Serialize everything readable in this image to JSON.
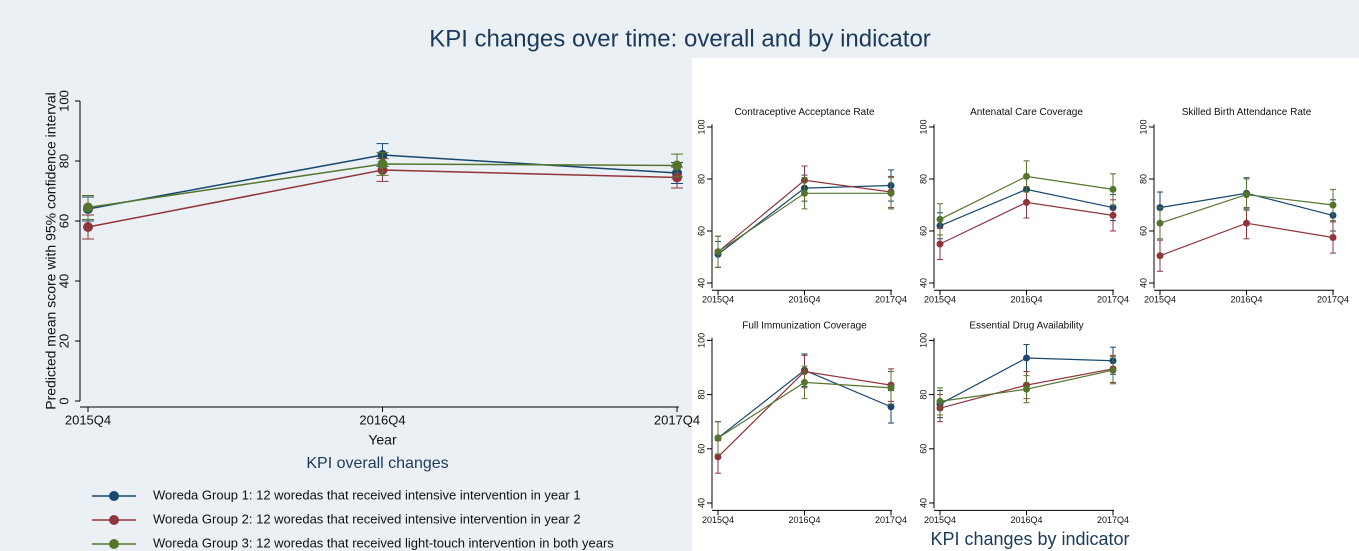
{
  "title": "KPI changes over time: overall and by indicator",
  "panel_title": "KPI changes by indicator",
  "chart_data": [
    {
      "type": "line",
      "title": "KPI overall changes",
      "xlabel": "Year",
      "ylabel": "Predicted mean score with 95% confidence interval",
      "categories": [
        "2015Q4",
        "2016Q4",
        "2017Q4"
      ],
      "ylim": [
        0,
        100
      ],
      "yticks": [
        0,
        20,
        40,
        60,
        80,
        100
      ],
      "grid": false,
      "legend": "bottom",
      "series": [
        {
          "name": "Woreda Group 1: 12 woredas that received intensive intervention in year 1",
          "color": "#1a476f",
          "values": [
            64,
            82,
            76
          ],
          "errors": [
            4,
            3.8,
            3.5
          ]
        },
        {
          "name": "Woreda Group 2: 12 woredas that received intensive intervention in year 2",
          "color": "#90353b",
          "values": [
            58,
            77,
            74.5
          ],
          "errors": [
            4,
            3.8,
            3.5
          ]
        },
        {
          "name": "Woreda Group 3: 12 woredas that received light-touch intervention in both years",
          "color": "#55752f",
          "values": [
            64.5,
            79,
            78.5
          ],
          "errors": [
            4,
            3.8,
            3.8
          ]
        }
      ]
    },
    {
      "type": "line",
      "title": "Contraceptive Acceptance Rate",
      "categories": [
        "2015Q4",
        "2016Q4",
        "2017Q4"
      ],
      "ylim": [
        38,
        101
      ],
      "yticks": [
        40,
        60,
        80,
        100
      ],
      "grid": false,
      "series": [
        {
          "color": "#1a476f",
          "values": [
            51,
            76.5,
            77.5
          ],
          "errors": [
            5,
            5,
            6
          ]
        },
        {
          "color": "#90353b",
          "values": [
            52,
            79.5,
            75
          ],
          "errors": [
            6,
            5.5,
            6
          ]
        },
        {
          "color": "#55752f",
          "values": [
            52,
            74.5,
            74.5
          ],
          "errors": [
            6,
            6,
            6
          ]
        }
      ]
    },
    {
      "type": "line",
      "title": "Antenatal Care Coverage",
      "categories": [
        "2015Q4",
        "2016Q4",
        "2017Q4"
      ],
      "ylim": [
        38,
        101
      ],
      "yticks": [
        40,
        60,
        80,
        100
      ],
      "grid": false,
      "series": [
        {
          "color": "#1a476f",
          "values": [
            62,
            76,
            69
          ],
          "errors": [
            5,
            5,
            5
          ]
        },
        {
          "color": "#90353b",
          "values": [
            55,
            71,
            66
          ],
          "errors": [
            6,
            6,
            6
          ]
        },
        {
          "color": "#55752f",
          "values": [
            64.5,
            81,
            76
          ],
          "errors": [
            6,
            6,
            6
          ]
        }
      ]
    },
    {
      "type": "line",
      "title": "Skilled Birth Attendance Rate",
      "categories": [
        "2015Q4",
        "2016Q4",
        "2017Q4"
      ],
      "ylim": [
        38,
        101
      ],
      "yticks": [
        40,
        60,
        80,
        100
      ],
      "grid": false,
      "series": [
        {
          "color": "#1a476f",
          "values": [
            69,
            74.5,
            66
          ],
          "errors": [
            6,
            6,
            6
          ]
        },
        {
          "color": "#90353b",
          "values": [
            50.5,
            63,
            57.5
          ],
          "errors": [
            6,
            6,
            6
          ]
        },
        {
          "color": "#55752f",
          "values": [
            63,
            74,
            70
          ],
          "errors": [
            6,
            6,
            6
          ]
        }
      ]
    },
    {
      "type": "line",
      "title": "Full Immunization Coverage",
      "categories": [
        "2015Q4",
        "2016Q4",
        "2017Q4"
      ],
      "ylim": [
        38,
        101
      ],
      "yticks": [
        40,
        60,
        80,
        100
      ],
      "grid": false,
      "series": [
        {
          "color": "#1a476f",
          "values": [
            64,
            89,
            75.5
          ],
          "errors": [
            6,
            6,
            6
          ]
        },
        {
          "color": "#90353b",
          "values": [
            57,
            88.5,
            83.5
          ],
          "errors": [
            6,
            6,
            6
          ]
        },
        {
          "color": "#55752f",
          "values": [
            64,
            84.5,
            82.5
          ],
          "errors": [
            6,
            6,
            6
          ]
        }
      ]
    },
    {
      "type": "line",
      "title": "Essential Drug Availability",
      "categories": [
        "2015Q4",
        "2016Q4",
        "2017Q4"
      ],
      "ylim": [
        38,
        101
      ],
      "yticks": [
        40,
        60,
        80,
        100
      ],
      "grid": false,
      "series": [
        {
          "color": "#1a476f",
          "values": [
            76.5,
            93.5,
            92.5
          ],
          "errors": [
            5,
            5,
            5
          ]
        },
        {
          "color": "#90353b",
          "values": [
            75,
            83.5,
            89.5
          ],
          "errors": [
            5,
            5,
            5
          ]
        },
        {
          "color": "#55752f",
          "values": [
            77.5,
            82,
            89
          ],
          "errors": [
            5,
            5,
            5
          ]
        }
      ]
    }
  ]
}
